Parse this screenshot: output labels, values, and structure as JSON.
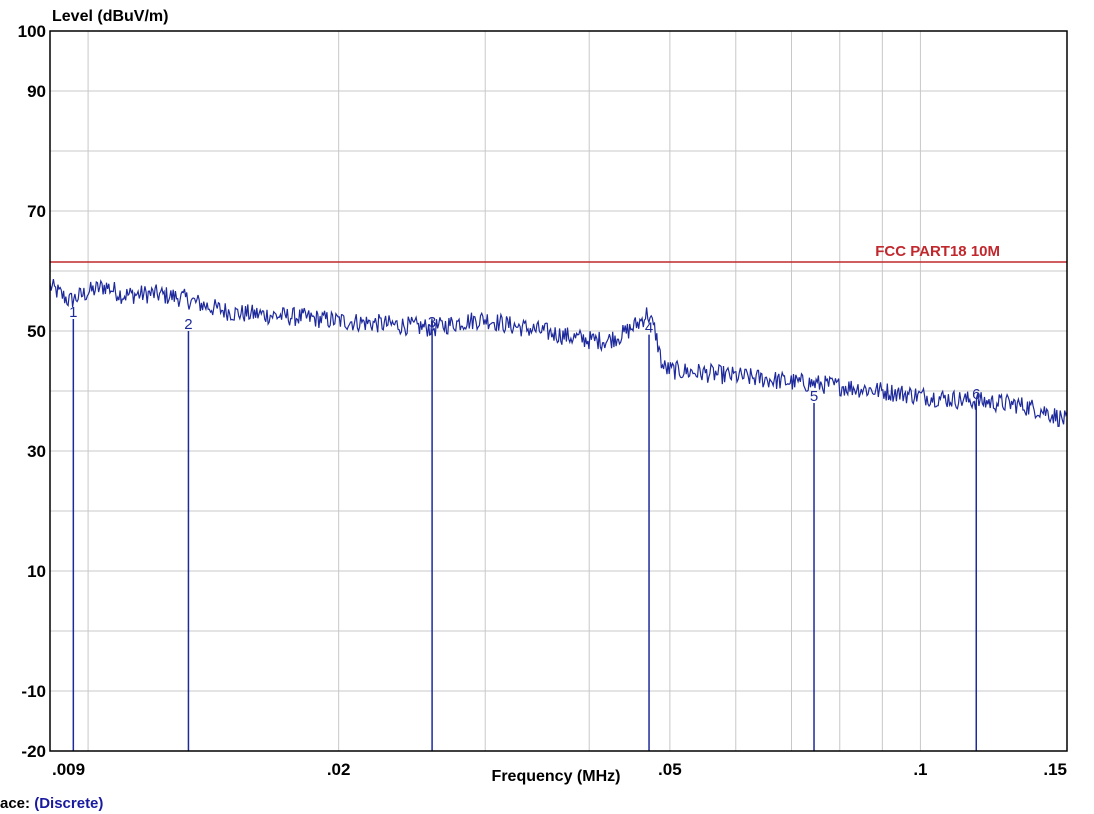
{
  "chart_data": {
    "type": "line",
    "ylabel": "Level (dBuV/m)",
    "xlabel": "Frequency (MHz)",
    "x_scale": "log",
    "xlim": [
      0.009,
      0.15
    ],
    "ylim": [
      -20,
      100
    ],
    "grid": true,
    "y_ticks": [
      100,
      90,
      70,
      50,
      30,
      10,
      -10,
      -20
    ],
    "x_ticks": [
      {
        "value": 0.009,
        "label": ".009"
      },
      {
        "value": 0.02,
        "label": ".02"
      },
      {
        "value": 0.05,
        "label": ".05"
      },
      {
        "value": 0.1,
        "label": ".1"
      },
      {
        "value": 0.15,
        "label": ".15"
      }
    ],
    "limit_line": {
      "name": "FCC PART18 10M",
      "value": 61.5,
      "color": "#c0282d"
    },
    "series": [
      {
        "color": "#1e2a9c",
        "points": [
          [
            0.009,
            57.5
          ],
          [
            0.0095,
            55.0
          ],
          [
            0.01,
            56.5
          ],
          [
            0.0105,
            57.5
          ],
          [
            0.011,
            56.0
          ],
          [
            0.012,
            56.2
          ],
          [
            0.013,
            55.5
          ],
          [
            0.014,
            54.0
          ],
          [
            0.015,
            53.0
          ],
          [
            0.016,
            52.8
          ],
          [
            0.017,
            52.5
          ],
          [
            0.018,
            52.3
          ],
          [
            0.019,
            52.0
          ],
          [
            0.02,
            51.7
          ],
          [
            0.022,
            51.3
          ],
          [
            0.024,
            50.9
          ],
          [
            0.026,
            50.5
          ],
          [
            0.028,
            51.5
          ],
          [
            0.03,
            52.0
          ],
          [
            0.032,
            51.0
          ],
          [
            0.035,
            50.0
          ],
          [
            0.038,
            49.0
          ],
          [
            0.04,
            48.5
          ],
          [
            0.042,
            48.4
          ],
          [
            0.044,
            49.5
          ],
          [
            0.046,
            51.5
          ],
          [
            0.047,
            53.0
          ],
          [
            0.048,
            50.0
          ],
          [
            0.049,
            44.0
          ],
          [
            0.05,
            43.5
          ],
          [
            0.055,
            43.0
          ],
          [
            0.06,
            42.5
          ],
          [
            0.065,
            42.0
          ],
          [
            0.07,
            41.5
          ],
          [
            0.075,
            41.2
          ],
          [
            0.08,
            40.8
          ],
          [
            0.09,
            40.0
          ],
          [
            0.1,
            39.2
          ],
          [
            0.11,
            38.6
          ],
          [
            0.12,
            38.2
          ],
          [
            0.13,
            37.8
          ],
          [
            0.14,
            36.8
          ],
          [
            0.15,
            35.0
          ]
        ]
      }
    ],
    "markers": [
      {
        "label": "1",
        "x": 0.0096,
        "y": 52.0
      },
      {
        "label": "2",
        "x": 0.0132,
        "y": 50.0
      },
      {
        "label": "3",
        "x": 0.0259,
        "y": 50.3
      },
      {
        "label": "4",
        "x": 0.0472,
        "y": 49.4
      },
      {
        "label": "5",
        "x": 0.0745,
        "y": 38.0
      },
      {
        "label": "6",
        "x": 0.1167,
        "y": 38.3
      }
    ]
  },
  "footer": {
    "trace_label": "ace:",
    "trace_value": "(Discrete)"
  }
}
